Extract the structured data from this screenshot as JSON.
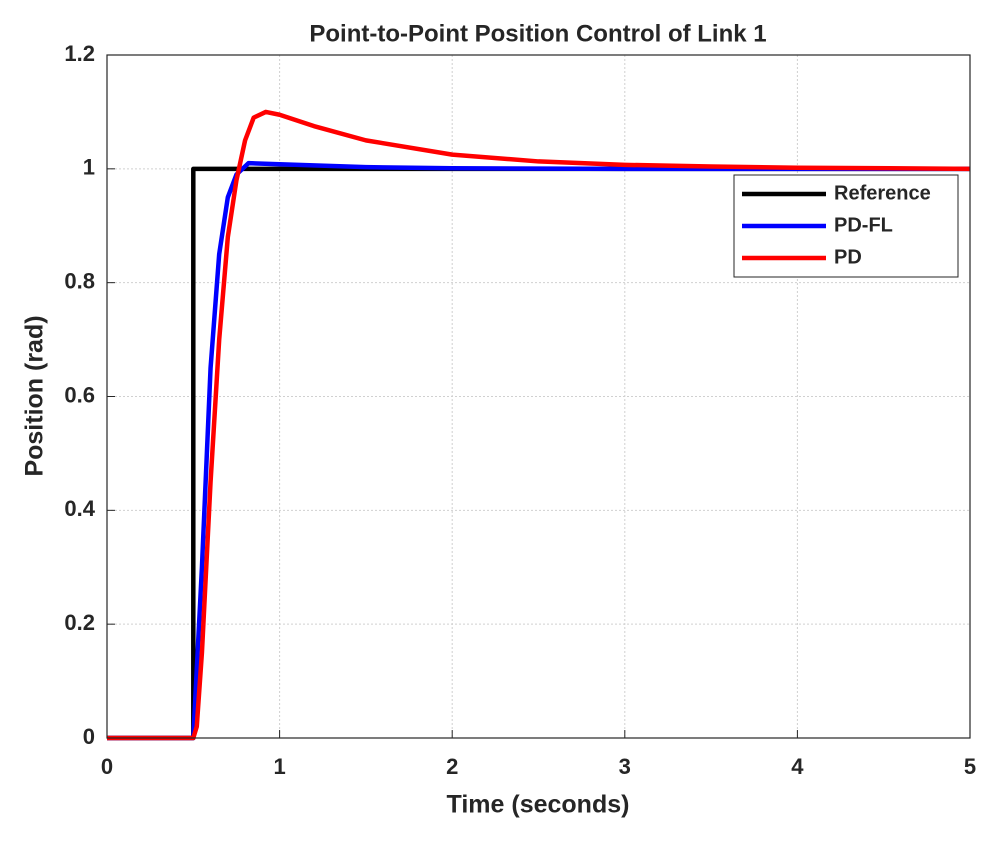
{
  "chart_data": {
    "type": "line",
    "title": "Point-to-Point Position Control of Link 1",
    "xlabel": "Time (seconds)",
    "ylabel": "Position (rad)",
    "xlim": [
      0,
      5
    ],
    "ylim": [
      0,
      1.2
    ],
    "xticks": [
      0,
      1,
      2,
      3,
      4,
      5
    ],
    "yticks": [
      0,
      0.2,
      0.4,
      0.6,
      0.8,
      1,
      1.2
    ],
    "grid": true,
    "legend": "northeast",
    "series": [
      {
        "name": "Reference",
        "color": "#000000",
        "x": [
          0,
          0.5,
          0.5,
          5
        ],
        "values": [
          0,
          0,
          1,
          1
        ]
      },
      {
        "name": "PD-FL",
        "color": "#0000ff",
        "x": [
          0,
          0.5,
          0.55,
          0.6,
          0.65,
          0.7,
          0.75,
          0.82,
          1,
          1.5,
          2,
          3,
          5
        ],
        "values": [
          0,
          0,
          0.3,
          0.65,
          0.85,
          0.95,
          0.99,
          1.01,
          1.008,
          1.003,
          1.001,
          1,
          1
        ]
      },
      {
        "name": "PD",
        "color": "#ff0000",
        "x": [
          0,
          0.5,
          0.52,
          0.55,
          0.6,
          0.65,
          0.7,
          0.75,
          0.8,
          0.85,
          0.92,
          1,
          1.2,
          1.5,
          2,
          2.5,
          3,
          3.5,
          4,
          5
        ],
        "values": [
          0,
          0,
          0.02,
          0.15,
          0.45,
          0.7,
          0.88,
          0.98,
          1.05,
          1.09,
          1.1,
          1.095,
          1.075,
          1.05,
          1.025,
          1.013,
          1.007,
          1.004,
          1.002,
          1
        ]
      }
    ]
  }
}
